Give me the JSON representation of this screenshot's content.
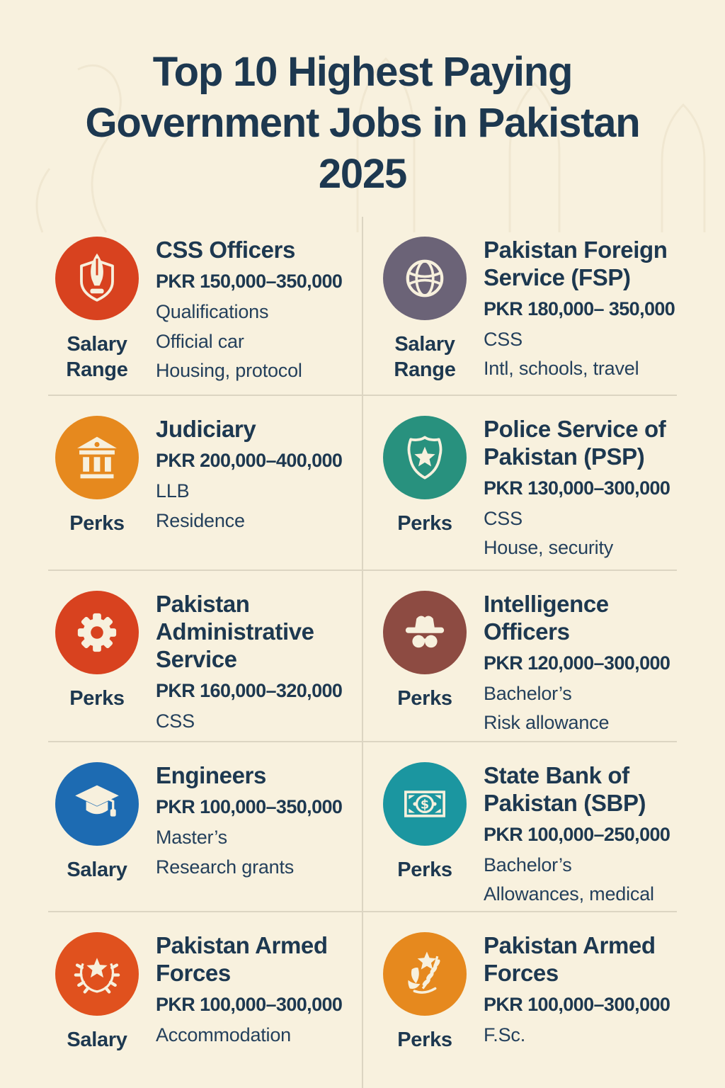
{
  "page": {
    "title_lines": [
      "Top 10 Highest Paying",
      "Government Jobs in Pakistan",
      "2025"
    ],
    "colors": {
      "background": "#f8f1de",
      "text": "#1d3850",
      "divider": "#dcd5c2"
    }
  },
  "jobs": [
    {
      "title": "CSS Officers",
      "salary": "PKR 150,000–350,000",
      "details": [
        "Qualifications",
        "Official car",
        "Housing, protocol"
      ],
      "label": "Salary Range",
      "icon": "shield-pen-icon",
      "icon_color": "#d8421f"
    },
    {
      "title": "Pakistan Foreign Service (FSP)",
      "salary": "PKR 180,000– 350,000",
      "details": [
        "CSS",
        "Intl, schools, travel"
      ],
      "label": "Salary Range",
      "icon": "globe-icon",
      "icon_color": "#6b6377"
    },
    {
      "title": "Judiciary",
      "salary": "PKR 200,000–400,000",
      "details": [
        "LLB",
        "Residence"
      ],
      "label": "Perks",
      "icon": "courthouse-icon",
      "icon_color": "#e6891e"
    },
    {
      "title": "Police Service of Pakistan (PSP)",
      "salary": "PKR 130,000–300,000",
      "details": [
        "CSS",
        "House, security"
      ],
      "label": "Perks",
      "icon": "police-badge-icon",
      "icon_color": "#28917e"
    },
    {
      "title": "Pakistan Administrative Service",
      "salary": "PKR 160,000–320,000",
      "details": [
        "CSS"
      ],
      "label": "Perks",
      "icon": "gear-icon",
      "icon_color": "#d8421f"
    },
    {
      "title": "Intelligence Officers",
      "salary": "PKR 120,000–300,000",
      "details": [
        "Bachelor’s",
        "Risk allowance"
      ],
      "label": "Perks",
      "icon": "spy-icon",
      "icon_color": "#8d4b42"
    },
    {
      "title": "Engineers",
      "salary": "PKR 100,000–350,000",
      "details": [
        "Master’s",
        "Research grants"
      ],
      "label": "Salary",
      "icon": "graduation-cap-icon",
      "icon_color": "#1d6bb2"
    },
    {
      "title": "State Bank of Pakistan (SBP)",
      "salary": "PKR 100,000–250,000",
      "details": [
        "Bachelor’s",
        "Allowances, medical"
      ],
      "label": "Perks",
      "icon": "banknote-icon",
      "icon_color": "#1b96a0"
    },
    {
      "title": "Pakistan Armed Forces",
      "salary": "PKR 100,000–300,000",
      "details": [
        "Accommodation"
      ],
      "label": "Salary",
      "icon": "star-wreath-icon",
      "icon_color": "#e0511e"
    },
    {
      "title": "Pakistan Armed Forces",
      "salary": "PKR 100,000–300,000",
      "details": [
        "F.Sc."
      ],
      "label": "Perks",
      "icon": "star-branch-icon",
      "icon_color": "#e6891e"
    }
  ]
}
